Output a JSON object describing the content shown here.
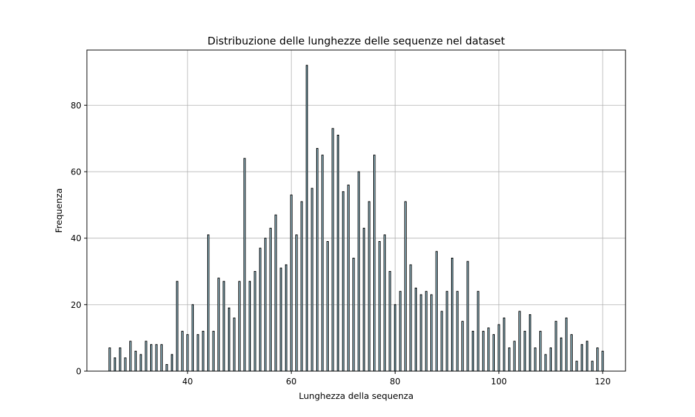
{
  "chart_data": {
    "type": "bar",
    "title": "Distribuzione delle lunghezze delle sequenze nel dataset",
    "xlabel": "Lunghezza della sequenza",
    "ylabel": "Frequenza",
    "xlim": [
      20.6,
      124.4
    ],
    "ylim": [
      0,
      96.6
    ],
    "xticks": [
      40,
      60,
      80,
      100,
      120
    ],
    "yticks": [
      0,
      20,
      40,
      60,
      80
    ],
    "grid": true,
    "bar_fill": "#add8e6",
    "bar_edge": "#000000",
    "x": [
      25,
      26,
      27,
      28,
      29,
      30,
      31,
      32,
      33,
      34,
      35,
      36,
      37,
      38,
      39,
      40,
      41,
      42,
      43,
      44,
      45,
      46,
      47,
      48,
      49,
      50,
      51,
      52,
      53,
      54,
      55,
      56,
      57,
      58,
      59,
      60,
      61,
      62,
      63,
      64,
      65,
      66,
      67,
      68,
      69,
      70,
      71,
      72,
      73,
      74,
      75,
      76,
      77,
      78,
      79,
      80,
      81,
      82,
      83,
      84,
      85,
      86,
      87,
      88,
      89,
      90,
      91,
      92,
      93,
      94,
      95,
      96,
      97,
      98,
      99,
      100,
      101,
      102,
      103,
      104,
      105,
      106,
      107,
      108,
      109,
      110,
      111,
      112,
      113,
      114,
      115,
      116,
      117,
      118,
      119,
      120
    ],
    "values": [
      7,
      4,
      7,
      4,
      9,
      6,
      5,
      9,
      8,
      8,
      8,
      2,
      5,
      27,
      12,
      11,
      20,
      11,
      12,
      41,
      12,
      28,
      27,
      19,
      16,
      27,
      64,
      27,
      30,
      37,
      40,
      43,
      47,
      31,
      32,
      53,
      41,
      51,
      92,
      55,
      67,
      65,
      39,
      73,
      71,
      54,
      56,
      34,
      60,
      43,
      51,
      65,
      39,
      41,
      30,
      20,
      24,
      51,
      32,
      25,
      23,
      24,
      23,
      36,
      18,
      24,
      34,
      24,
      15,
      33,
      12,
      24,
      12,
      13,
      11,
      14,
      16,
      7,
      9,
      18,
      12,
      17,
      7,
      12,
      5,
      7,
      15,
      10,
      16,
      11,
      3,
      8,
      9,
      3,
      7,
      6
    ]
  }
}
